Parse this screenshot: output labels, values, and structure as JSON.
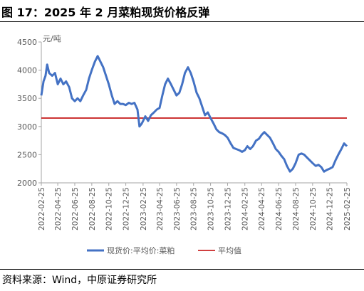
{
  "title": "图 17：2025 年 2 月菜粕现货价格反弹",
  "source": "资料来源：Wind，中原证券研究所",
  "colors": {
    "series": "#4472C4",
    "average": "#C00000",
    "axis": "#A6A6A6",
    "text": "#595959"
  },
  "chart_data": {
    "type": "line",
    "unit": "元/吨",
    "ylim": [
      2000,
      4500
    ],
    "yticks": [
      2000,
      2500,
      3000,
      3500,
      4000,
      4500
    ],
    "xlim": [
      "2022-02-25",
      "2025-02-25"
    ],
    "xticks": [
      "2022-02-25",
      "2022-04-25",
      "2022-06-25",
      "2022-08-25",
      "2022-10-25",
      "2022-12-25",
      "2023-02-25",
      "2023-04-25",
      "2023-06-25",
      "2023-08-25",
      "2023-10-25",
      "2023-12-25",
      "2024-02-25",
      "2024-04-25",
      "2024-06-25",
      "2024-08-25",
      "2024-10-25",
      "2024-12-25",
      "2025-02-25"
    ],
    "grid": false,
    "legend_position": "bottom",
    "series": [
      {
        "name": "现货价:平均价:菜粕",
        "points": [
          [
            "2022-02-25",
            3550
          ],
          [
            "2022-03-05",
            3800
          ],
          [
            "2022-03-12",
            3900
          ],
          [
            "2022-03-18",
            4100
          ],
          [
            "2022-03-25",
            3950
          ],
          [
            "2022-04-05",
            3900
          ],
          [
            "2022-04-15",
            3950
          ],
          [
            "2022-04-25",
            3750
          ],
          [
            "2022-05-05",
            3850
          ],
          [
            "2022-05-15",
            3750
          ],
          [
            "2022-05-25",
            3800
          ],
          [
            "2022-06-05",
            3700
          ],
          [
            "2022-06-15",
            3500
          ],
          [
            "2022-06-25",
            3450
          ],
          [
            "2022-07-05",
            3500
          ],
          [
            "2022-07-15",
            3450
          ],
          [
            "2022-07-25",
            3550
          ],
          [
            "2022-08-05",
            3650
          ],
          [
            "2022-08-15",
            3850
          ],
          [
            "2022-08-25",
            4000
          ],
          [
            "2022-09-05",
            4150
          ],
          [
            "2022-09-15",
            4250
          ],
          [
            "2022-09-25",
            4150
          ],
          [
            "2022-10-05",
            4050
          ],
          [
            "2022-10-15",
            3900
          ],
          [
            "2022-10-25",
            3750
          ],
          [
            "2022-11-05",
            3550
          ],
          [
            "2022-11-15",
            3400
          ],
          [
            "2022-11-25",
            3450
          ],
          [
            "2022-12-05",
            3400
          ],
          [
            "2022-12-15",
            3400
          ],
          [
            "2022-12-25",
            3380
          ],
          [
            "2023-01-05",
            3420
          ],
          [
            "2023-01-15",
            3400
          ],
          [
            "2023-01-25",
            3420
          ],
          [
            "2023-02-05",
            3300
          ],
          [
            "2023-02-12",
            3000
          ],
          [
            "2023-02-20",
            3050
          ],
          [
            "2023-02-25",
            3100
          ],
          [
            "2023-03-05",
            3180
          ],
          [
            "2023-03-15",
            3100
          ],
          [
            "2023-03-25",
            3200
          ],
          [
            "2023-04-05",
            3250
          ],
          [
            "2023-04-15",
            3300
          ],
          [
            "2023-04-25",
            3330
          ],
          [
            "2023-05-05",
            3550
          ],
          [
            "2023-05-15",
            3750
          ],
          [
            "2023-05-25",
            3850
          ],
          [
            "2023-06-05",
            3750
          ],
          [
            "2023-06-15",
            3650
          ],
          [
            "2023-06-25",
            3550
          ],
          [
            "2023-07-05",
            3600
          ],
          [
            "2023-07-15",
            3750
          ],
          [
            "2023-07-25",
            3950
          ],
          [
            "2023-08-05",
            4050
          ],
          [
            "2023-08-15",
            3950
          ],
          [
            "2023-08-25",
            3800
          ],
          [
            "2023-09-05",
            3600
          ],
          [
            "2023-09-15",
            3500
          ],
          [
            "2023-09-25",
            3350
          ],
          [
            "2023-10-05",
            3200
          ],
          [
            "2023-10-15",
            3250
          ],
          [
            "2023-10-25",
            3150
          ],
          [
            "2023-11-05",
            3050
          ],
          [
            "2023-11-15",
            2950
          ],
          [
            "2023-11-25",
            2900
          ],
          [
            "2023-12-05",
            2880
          ],
          [
            "2023-12-15",
            2850
          ],
          [
            "2023-12-25",
            2800
          ],
          [
            "2024-01-05",
            2700
          ],
          [
            "2024-01-15",
            2620
          ],
          [
            "2024-01-25",
            2600
          ],
          [
            "2024-02-05",
            2580
          ],
          [
            "2024-02-15",
            2550
          ],
          [
            "2024-02-25",
            2580
          ],
          [
            "2024-03-05",
            2650
          ],
          [
            "2024-03-15",
            2600
          ],
          [
            "2024-03-25",
            2650
          ],
          [
            "2024-04-05",
            2750
          ],
          [
            "2024-04-15",
            2780
          ],
          [
            "2024-04-25",
            2850
          ],
          [
            "2024-05-05",
            2900
          ],
          [
            "2024-05-15",
            2850
          ],
          [
            "2024-05-25",
            2800
          ],
          [
            "2024-06-05",
            2700
          ],
          [
            "2024-06-15",
            2600
          ],
          [
            "2024-06-25",
            2550
          ],
          [
            "2024-07-05",
            2480
          ],
          [
            "2024-07-15",
            2420
          ],
          [
            "2024-07-25",
            2300
          ],
          [
            "2024-08-05",
            2200
          ],
          [
            "2024-08-15",
            2250
          ],
          [
            "2024-08-25",
            2350
          ],
          [
            "2024-09-05",
            2500
          ],
          [
            "2024-09-15",
            2520
          ],
          [
            "2024-09-25",
            2500
          ],
          [
            "2024-10-05",
            2450
          ],
          [
            "2024-10-15",
            2400
          ],
          [
            "2024-10-25",
            2350
          ],
          [
            "2024-11-05",
            2300
          ],
          [
            "2024-11-15",
            2320
          ],
          [
            "2024-11-25",
            2280
          ],
          [
            "2024-12-05",
            2200
          ],
          [
            "2024-12-15",
            2230
          ],
          [
            "2024-12-25",
            2250
          ],
          [
            "2025-01-05",
            2280
          ],
          [
            "2025-01-15",
            2400
          ],
          [
            "2025-01-25",
            2500
          ],
          [
            "2025-02-05",
            2600
          ],
          [
            "2025-02-15",
            2700
          ],
          [
            "2025-02-25",
            2650
          ]
        ]
      },
      {
        "name": "平均值",
        "value": 3150
      }
    ]
  }
}
